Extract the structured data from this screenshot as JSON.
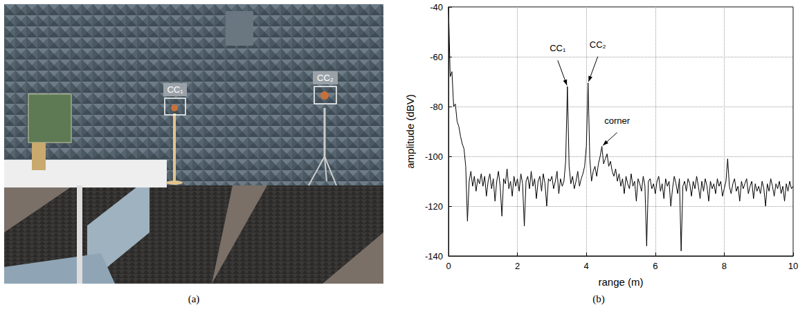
{
  "photo": {
    "caption": "(a)",
    "labels": [
      "CC₁",
      "CC₂"
    ]
  },
  "chart_data": {
    "type": "line",
    "caption": "(b)",
    "xlabel": "range (m)",
    "ylabel": "amplitude (dBV)",
    "xlim": [
      0,
      10
    ],
    "ylim": [
      -140,
      -40
    ],
    "xticks": [
      0,
      2,
      4,
      6,
      8,
      10
    ],
    "yticks": [
      -140,
      -120,
      -100,
      -80,
      -60,
      -40
    ],
    "grid": true,
    "color": "#000000",
    "x": [
      0,
      0.05,
      0.1,
      0.15,
      0.2,
      0.25,
      0.3,
      0.35,
      0.4,
      0.45,
      0.5,
      0.55,
      0.6,
      0.65,
      0.7,
      0.75,
      0.8,
      0.85,
      0.9,
      0.95,
      1,
      1.05,
      1.1,
      1.15,
      1.2,
      1.25,
      1.3,
      1.35,
      1.4,
      1.45,
      1.5,
      1.55,
      1.6,
      1.65,
      1.7,
      1.75,
      1.8,
      1.85,
      1.9,
      1.95,
      2,
      2.05,
      2.1,
      2.15,
      2.2,
      2.25,
      2.3,
      2.35,
      2.4,
      2.45,
      2.5,
      2.55,
      2.6,
      2.65,
      2.7,
      2.75,
      2.8,
      2.85,
      2.9,
      2.95,
      3,
      3.05,
      3.1,
      3.15,
      3.2,
      3.25,
      3.3,
      3.35,
      3.4,
      3.45,
      3.5,
      3.55,
      3.6,
      3.65,
      3.7,
      3.75,
      3.8,
      3.85,
      3.9,
      3.95,
      4,
      4.05,
      4.1,
      4.15,
      4.2,
      4.25,
      4.3,
      4.35,
      4.4,
      4.45,
      4.5,
      4.55,
      4.6,
      4.65,
      4.7,
      4.75,
      4.8,
      4.85,
      4.9,
      4.95,
      5,
      5.05,
      5.1,
      5.15,
      5.2,
      5.25,
      5.3,
      5.35,
      5.4,
      5.45,
      5.5,
      5.55,
      5.6,
      5.65,
      5.7,
      5.75,
      5.8,
      5.85,
      5.9,
      5.95,
      6,
      6.05,
      6.1,
      6.15,
      6.2,
      6.25,
      6.3,
      6.35,
      6.4,
      6.45,
      6.5,
      6.55,
      6.6,
      6.65,
      6.7,
      6.75,
      6.8,
      6.85,
      6.9,
      6.95,
      7,
      7.05,
      7.1,
      7.15,
      7.2,
      7.25,
      7.3,
      7.35,
      7.4,
      7.45,
      7.5,
      7.55,
      7.6,
      7.65,
      7.7,
      7.75,
      7.8,
      7.85,
      7.9,
      7.95,
      8,
      8.05,
      8.1,
      8.15,
      8.2,
      8.25,
      8.3,
      8.35,
      8.4,
      8.45,
      8.5,
      8.55,
      8.6,
      8.65,
      8.7,
      8.75,
      8.8,
      8.85,
      8.9,
      8.95,
      9,
      9.05,
      9.1,
      9.15,
      9.2,
      9.25,
      9.3,
      9.35,
      9.4,
      9.45,
      9.5,
      9.55,
      9.6,
      9.65,
      9.7,
      9.75,
      9.8,
      9.85,
      9.9,
      9.95,
      10
    ],
    "values": [
      -40,
      -68,
      -66,
      -80,
      -79,
      -86,
      -88,
      -92,
      -95,
      -97,
      -104,
      -126,
      -110,
      -106,
      -112,
      -108,
      -114,
      -109,
      -111,
      -107,
      -112,
      -108,
      -116,
      -110,
      -107,
      -113,
      -109,
      -118,
      -110,
      -106,
      -112,
      -124,
      -109,
      -111,
      -105,
      -113,
      -110,
      -116,
      -108,
      -112,
      -109,
      -114,
      -107,
      -111,
      -128,
      -110,
      -108,
      -113,
      -106,
      -112,
      -109,
      -117,
      -110,
      -108,
      -114,
      -107,
      -111,
      -120,
      -109,
      -110,
      -108,
      -113,
      -110,
      -106,
      -115,
      -109,
      -112,
      -110,
      -102,
      -72,
      -104,
      -111,
      -108,
      -113,
      -110,
      -106,
      -112,
      -109,
      -107,
      -104,
      -96,
      -70.5,
      -101,
      -110,
      -106,
      -104,
      -108,
      -103,
      -100,
      -96,
      -103,
      -101,
      -99,
      -104,
      -102,
      -106,
      -108,
      -105,
      -110,
      -107,
      -112,
      -109,
      -115,
      -108,
      -111,
      -113,
      -107,
      -112,
      -110,
      -118,
      -109,
      -111,
      -114,
      -108,
      -112,
      -136,
      -110,
      -109,
      -113,
      -111,
      -115,
      -110,
      -108,
      -114,
      -111,
      -117,
      -109,
      -112,
      -110,
      -120,
      -113,
      -108,
      -111,
      -115,
      -109,
      -138,
      -112,
      -110,
      -114,
      -109,
      -111,
      -116,
      -110,
      -113,
      -108,
      -112,
      -117,
      -110,
      -114,
      -109,
      -112,
      -118,
      -110,
      -113,
      -111,
      -115,
      -109,
      -112,
      -110,
      -116,
      -113,
      -110,
      -101,
      -112,
      -115,
      -111,
      -109,
      -114,
      -112,
      -118,
      -110,
      -113,
      -111,
      -109,
      -115,
      -112,
      -110,
      -117,
      -111,
      -114,
      -112,
      -115,
      -110,
      -113,
      -120,
      -111,
      -114,
      -109,
      -112,
      -116,
      -111,
      -113,
      -110,
      -115,
      -112,
      -118,
      -111,
      -114,
      -110,
      -113,
      -112
    ],
    "annotations": [
      {
        "text": "CC₁",
        "x": 3.45,
        "y": -72
      },
      {
        "text": "CC₂",
        "x": 4.05,
        "y": -70.5
      },
      {
        "text": "corner",
        "x": 4.45,
        "y": -96
      }
    ]
  }
}
